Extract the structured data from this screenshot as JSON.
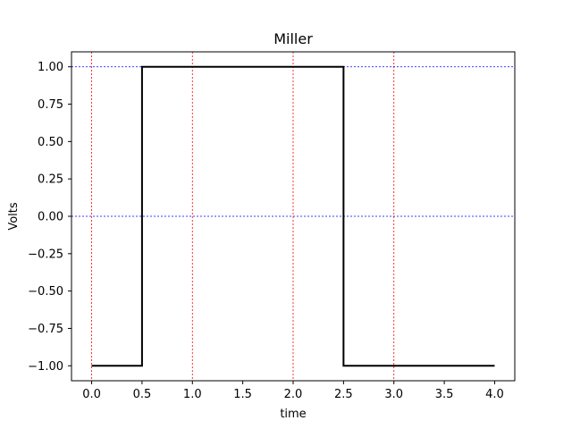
{
  "chart_data": {
    "type": "line",
    "title": "Miller",
    "xlabel": "time",
    "ylabel": "Volts",
    "xlim": [
      -0.2,
      4.2
    ],
    "ylim": [
      -1.1,
      1.1
    ],
    "x_ticks": [
      0.0,
      0.5,
      1.0,
      1.5,
      2.0,
      2.5,
      3.0,
      3.5,
      4.0
    ],
    "x_tick_labels": [
      "0.0",
      "0.5",
      "1.0",
      "1.5",
      "2.0",
      "2.5",
      "3.0",
      "3.5",
      "4.0"
    ],
    "y_ticks": [
      -1.0,
      -0.75,
      -0.5,
      -0.25,
      0.0,
      0.25,
      0.5,
      0.75,
      1.0
    ],
    "y_tick_labels": [
      "−1.00",
      "−0.75",
      "−0.50",
      "−0.25",
      "0.00",
      "0.25",
      "0.50",
      "0.75",
      "1.00"
    ],
    "vertical_gridlines": [
      0,
      1,
      2,
      3
    ],
    "horizontal_gridlines": [
      0,
      1
    ],
    "series": [
      {
        "color": "#000000",
        "step": true,
        "x": [
          0.0,
          0.5,
          0.5,
          2.5,
          2.5,
          4.0
        ],
        "y": [
          -1,
          -1,
          1,
          1,
          -1,
          -1
        ]
      }
    ],
    "colors": {
      "signal": "#000000",
      "vertical_grid": "#ff0000",
      "horizontal_grid": "#0000ff"
    },
    "grid": true,
    "legend": null
  }
}
